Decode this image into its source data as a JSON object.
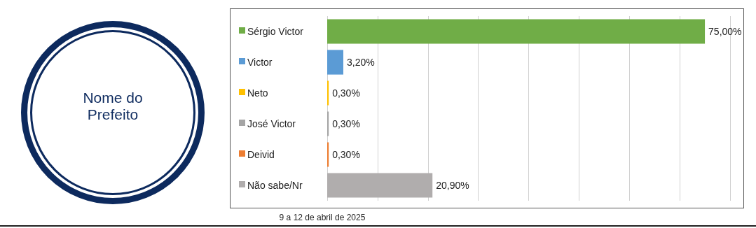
{
  "chart_data": {
    "type": "bar",
    "orientation": "horizontal",
    "title": "Nome do Prefeito",
    "categories": [
      "Sérgio Victor",
      "Victor",
      "Neto",
      "José Victor",
      "Deivid",
      "Não sabe/Nr"
    ],
    "values": [
      75,
      3.2,
      0.3,
      0.3,
      0.3,
      20.9
    ],
    "colors": [
      "#70ad47",
      "#5b9bd5",
      "#ffc000",
      "#a5a5a5",
      "#ed7d31",
      "#b0adad"
    ],
    "value_labels": [
      "75,00%",
      "3,20%",
      "0,30%",
      "0,30%",
      "0,30%",
      "20,90%"
    ],
    "xlim": [
      0,
      80
    ],
    "xticks": [
      {
        "value": 0,
        "label": null
      },
      {
        "value": 10,
        "label": null
      },
      {
        "value": 20,
        "label": null
      },
      {
        "value": 30,
        "label": null
      },
      {
        "value": 40,
        "label": null
      },
      {
        "value": 50,
        "label": null
      },
      {
        "value": 60,
        "label": null
      },
      {
        "value": 70,
        "label": null
      },
      {
        "value": 80,
        "label": null
      }
    ],
    "grid": "x",
    "annotations": [
      "9 a 12 de abril de 2025"
    ]
  }
}
